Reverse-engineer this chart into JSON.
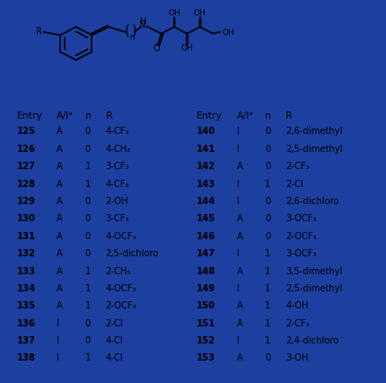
{
  "bg_color": "#1c3fa0",
  "table_bg": "#ffffff",
  "header": [
    "Entry",
    "A/Iᵃ",
    "n",
    "R"
  ],
  "left_rows": [
    [
      "125",
      "A",
      "0",
      "4-CF₃"
    ],
    [
      "126",
      "A",
      "0",
      "4-CH₃"
    ],
    [
      "127",
      "A",
      "1",
      "3-CF₃"
    ],
    [
      "128",
      "A",
      "1",
      "4-CF₃"
    ],
    [
      "129",
      "A",
      "0",
      "2-OH"
    ],
    [
      "130",
      "A",
      "0",
      "3-CF₃"
    ],
    [
      "131",
      "A",
      "0",
      "4-OCF₃"
    ],
    [
      "132",
      "A",
      "0",
      "2,5-dichloro"
    ],
    [
      "133",
      "A",
      "1",
      "2-CH₃"
    ],
    [
      "134",
      "A",
      "1",
      "4-OCF₃"
    ],
    [
      "135",
      "A",
      "1",
      "2-OCF₃"
    ],
    [
      "136",
      "I",
      "0",
      "2-Cl"
    ],
    [
      "137",
      "I",
      "0",
      "4-Cl"
    ],
    [
      "138",
      "I",
      "1",
      "4-Cl"
    ]
  ],
  "right_rows": [
    [
      "140",
      "I",
      "0",
      "2,6-dimethyl"
    ],
    [
      "141",
      "I",
      "0",
      "2,5-dimethyl"
    ],
    [
      "142",
      "A",
      "0",
      "2-CF₃"
    ],
    [
      "143",
      "I",
      "1",
      "2-Cl"
    ],
    [
      "144",
      "I",
      "0",
      "2,6-dichloro"
    ],
    [
      "145",
      "A",
      "0",
      "3-OCF₃"
    ],
    [
      "146",
      "A",
      "0",
      "2-OCF₃"
    ],
    [
      "147",
      "I",
      "1",
      "3-OCF₃"
    ],
    [
      "148",
      "A",
      "1",
      "3,5-dimethyl"
    ],
    [
      "149",
      "I",
      "1",
      "2,5-dimethyl"
    ],
    [
      "150",
      "A",
      "1",
      "4-OH"
    ],
    [
      "151",
      "A",
      "1",
      "2-CF₃"
    ],
    [
      "152",
      "I",
      "1",
      "2,4-dichloro"
    ],
    [
      "153",
      "A",
      "0",
      "3-OH"
    ]
  ]
}
